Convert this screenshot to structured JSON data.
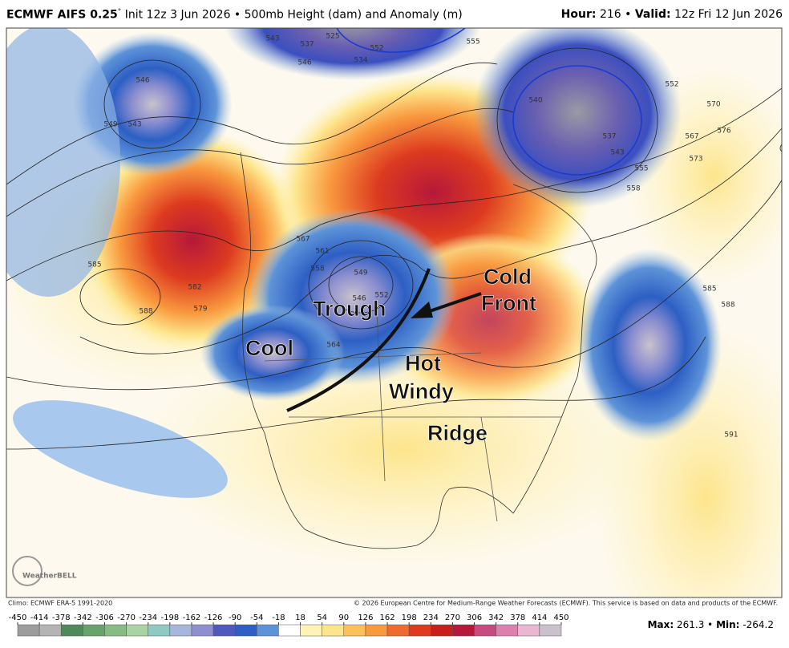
{
  "header": {
    "model": "ECMWF AIFS 0.25",
    "degree": "°",
    "run": "Init 12z 3 Jun 2026 • 500mb Height (dam) and Anomaly (m)",
    "hour_label": "Hour:",
    "hour": "216",
    "separator": "•",
    "valid_label": "Valid:",
    "valid": "12z Fri 12 Jun 2026"
  },
  "map": {
    "annotations": [
      "Cold",
      "Front",
      "Trough",
      "Cool",
      "Hot",
      "Windy",
      "Ridge"
    ],
    "contour_labels": [
      "543",
      "537",
      "534",
      "525",
      "546",
      "555",
      "552",
      "546",
      "543",
      "549",
      "552",
      "540",
      "537",
      "543",
      "555",
      "558",
      "567",
      "570",
      "573",
      "576",
      "585",
      "588",
      "582",
      "579",
      "585",
      "588",
      "591",
      "561",
      "558",
      "549",
      "546",
      "552",
      "564",
      "567"
    ],
    "logo": "WeatherBELL"
  },
  "footer": {
    "climo": "Climo: ECMWF ERA-5 1991-2020",
    "copyright": "© 2026 European Centre for Medium-Range Weather Forecasts (ECMWF). This service is based on data and products of the ECMWF."
  },
  "colorbar": {
    "ticks": [
      -450,
      -414,
      -378,
      -342,
      -306,
      -270,
      -234,
      -198,
      -162,
      -126,
      -90,
      -54,
      -18,
      18,
      54,
      90,
      126,
      162,
      198,
      234,
      270,
      306,
      342,
      378,
      414,
      450
    ],
    "colors": [
      "#9c9c9c",
      "#b4b4b4",
      "#4f8a5c",
      "#67a46d",
      "#86bb82",
      "#a9d3a4",
      "#8ec9c3",
      "#a7b7dc",
      "#8d8fcf",
      "#5059bd",
      "#2d5fc4",
      "#5d93d8",
      "#ffffff",
      "#fff3b5",
      "#fde58c",
      "#fcc15a",
      "#f99a3f",
      "#ef6a2e",
      "#dd3a20",
      "#c71f1a",
      "#b5183a",
      "#c94a7e",
      "#dc80b0",
      "#e9b7d1",
      "#c9c2cc"
    ]
  },
  "stats": {
    "max_label": "Max:",
    "max": 261.3,
    "separator": "•",
    "min_label": "Min:",
    "min": -264.2
  }
}
